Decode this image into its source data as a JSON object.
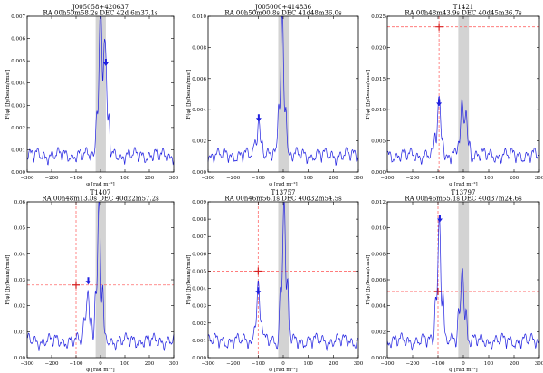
{
  "chart_data": [
    {
      "type": "line",
      "title": "J005058+420637",
      "subtitle": "RA  00h50m58.2s  DEC  42d 6m37.1s",
      "xlabel": "φ [rad m⁻²]",
      "ylabel": "F(φ)  [Jy/beam/rmsf]",
      "xlim": [
        -300,
        300
      ],
      "ylim": [
        0,
        0.007
      ],
      "xticks": [
        -300,
        -200,
        -100,
        0,
        100,
        200,
        300
      ],
      "yticks": [
        0,
        0.001,
        0.002,
        0.003,
        0.004,
        0.005,
        0.006,
        0.007
      ],
      "ytick_labels": [
        "0.000",
        "0.001",
        "0.002",
        "0.003",
        "0.004",
        "0.005",
        "0.006",
        "0.007"
      ],
      "shaded_band": [
        -20,
        22
      ],
      "peaks": [
        {
          "x": -1,
          "y": 0.0063
        },
        {
          "x": 20,
          "y": 0.0044
        }
      ],
      "arrows": [
        {
          "x": 22,
          "y": 0.0048
        }
      ],
      "crosshair": null
    },
    {
      "type": "line",
      "title": "J005000+414836",
      "subtitle": "RA  00h50m00.8s  DEC  41d48m36.0s",
      "xlabel": "φ [rad m⁻²]",
      "ylabel": "F(φ)  [Jy/beam/rmsf]",
      "xlim": [
        -300,
        300
      ],
      "ylim": [
        0,
        0.01
      ],
      "xticks": [
        -300,
        -200,
        -100,
        0,
        100,
        200,
        300
      ],
      "yticks": [
        0,
        0.002,
        0.004,
        0.006,
        0.008,
        0.01
      ],
      "ytick_labels": [
        "0.000",
        "0.002",
        "0.004",
        "0.006",
        "0.008",
        "0.010"
      ],
      "shaded_band": [
        -20,
        22
      ],
      "peaks": [
        {
          "x": -4,
          "y": 0.0095
        },
        {
          "x": -98,
          "y": 0.0025
        }
      ],
      "arrows": [
        {
          "x": -98,
          "y": 0.0033
        }
      ],
      "crosshair": null
    },
    {
      "type": "line",
      "title": "T1421",
      "subtitle": "RA  00h48m43.9s  DEC  40d45m36.7s",
      "xlabel": "φ [rad m⁻²]",
      "ylabel": "F(φ)  [Jy/beam/rmsf]",
      "xlim": [
        -300,
        300
      ],
      "ylim": [
        0,
        0.025
      ],
      "xticks": [
        -300,
        -200,
        -100,
        0,
        100,
        200,
        300
      ],
      "yticks": [
        0,
        0.005,
        0.01,
        0.015,
        0.02,
        0.025
      ],
      "ytick_labels": [
        "0.000",
        "0.005",
        "0.010",
        "0.015",
        "0.020",
        "0.025"
      ],
      "shaded_band": [
        -20,
        22
      ],
      "peaks": [
        {
          "x": -96,
          "y": 0.0093
        },
        {
          "x": -5,
          "y": 0.0062
        },
        {
          "x": 10,
          "y": 0.0055
        }
      ],
      "arrows": [
        {
          "x": -96,
          "y": 0.0107
        }
      ],
      "crosshair": {
        "x": -96,
        "y": 0.0233
      }
    },
    {
      "type": "line",
      "title": "T1407",
      "subtitle": "RA  00h48m13.0s  DEC  40d22m57.2s",
      "xlabel": "φ [rad m⁻²]",
      "ylabel": "F(φ)  [Jy/beam/rmsf]",
      "xlim": [
        -300,
        300
      ],
      "ylim": [
        0,
        0.06
      ],
      "xticks": [
        -300,
        -200,
        -100,
        0,
        100,
        200,
        300
      ],
      "yticks": [
        0,
        0.01,
        0.02,
        0.03,
        0.04,
        0.05,
        0.06
      ],
      "ytick_labels": [
        "0.00",
        "0.01",
        "0.02",
        "0.03",
        "0.04",
        "0.05",
        "0.06"
      ],
      "shaded_band": [
        -20,
        22
      ],
      "peaks": [
        {
          "x": -6,
          "y": 0.055
        },
        {
          "x": -52,
          "y": 0.022
        }
      ],
      "arrows": [
        {
          "x": -50,
          "y": 0.0285
        }
      ],
      "crosshair": {
        "x": -100,
        "y": 0.028
      }
    },
    {
      "type": "line",
      "title": "T13757",
      "subtitle": "RA  00h46m56.1s  DEC  40d32m54.5s",
      "xlabel": "φ [rad m⁻²]",
      "ylabel": "F(φ)  [Jy/beam/rmsf]",
      "xlim": [
        -300,
        300
      ],
      "ylim": [
        0,
        0.009
      ],
      "xticks": [
        -300,
        -200,
        -100,
        0,
        100,
        200,
        300
      ],
      "yticks": [
        0,
        0.001,
        0.002,
        0.003,
        0.004,
        0.005,
        0.006,
        0.007,
        0.008,
        0.009
      ],
      "ytick_labels": [
        "0.000",
        "0.001",
        "0.002",
        "0.003",
        "0.004",
        "0.005",
        "0.006",
        "0.007",
        "0.008",
        "0.009"
      ],
      "shaded_band": [
        -20,
        22
      ],
      "peaks": [
        {
          "x": 3,
          "y": 0.0085
        },
        {
          "x": -100,
          "y": 0.0032
        }
      ],
      "arrows": [
        {
          "x": -100,
          "y": 0.0037
        }
      ],
      "crosshair": {
        "x": -100,
        "y": 0.005
      }
    },
    {
      "type": "line",
      "title": "T13797",
      "subtitle": "RA  00h46m55.1s  DEC  40d37m24.6s",
      "xlabel": "φ [rad m⁻²]",
      "ylabel": "F(φ)  [Jy/beam/rmsf]",
      "xlim": [
        -300,
        300
      ],
      "ylim": [
        0,
        0.012
      ],
      "xticks": [
        -300,
        -200,
        -100,
        0,
        100,
        200,
        300
      ],
      "yticks": [
        0,
        0.002,
        0.004,
        0.006,
        0.008,
        0.01,
        0.012
      ],
      "ytick_labels": [
        "0.000",
        "0.002",
        "0.004",
        "0.006",
        "0.008",
        "0.010",
        "0.012"
      ],
      "shaded_band": [
        -20,
        22
      ],
      "peaks": [
        {
          "x": -95,
          "y": 0.0098
        },
        {
          "x": -4,
          "y": 0.0062
        }
      ],
      "arrows": [
        {
          "x": -93,
          "y": 0.0105
        }
      ],
      "crosshair": {
        "x": -100,
        "y": 0.0051
      }
    }
  ]
}
